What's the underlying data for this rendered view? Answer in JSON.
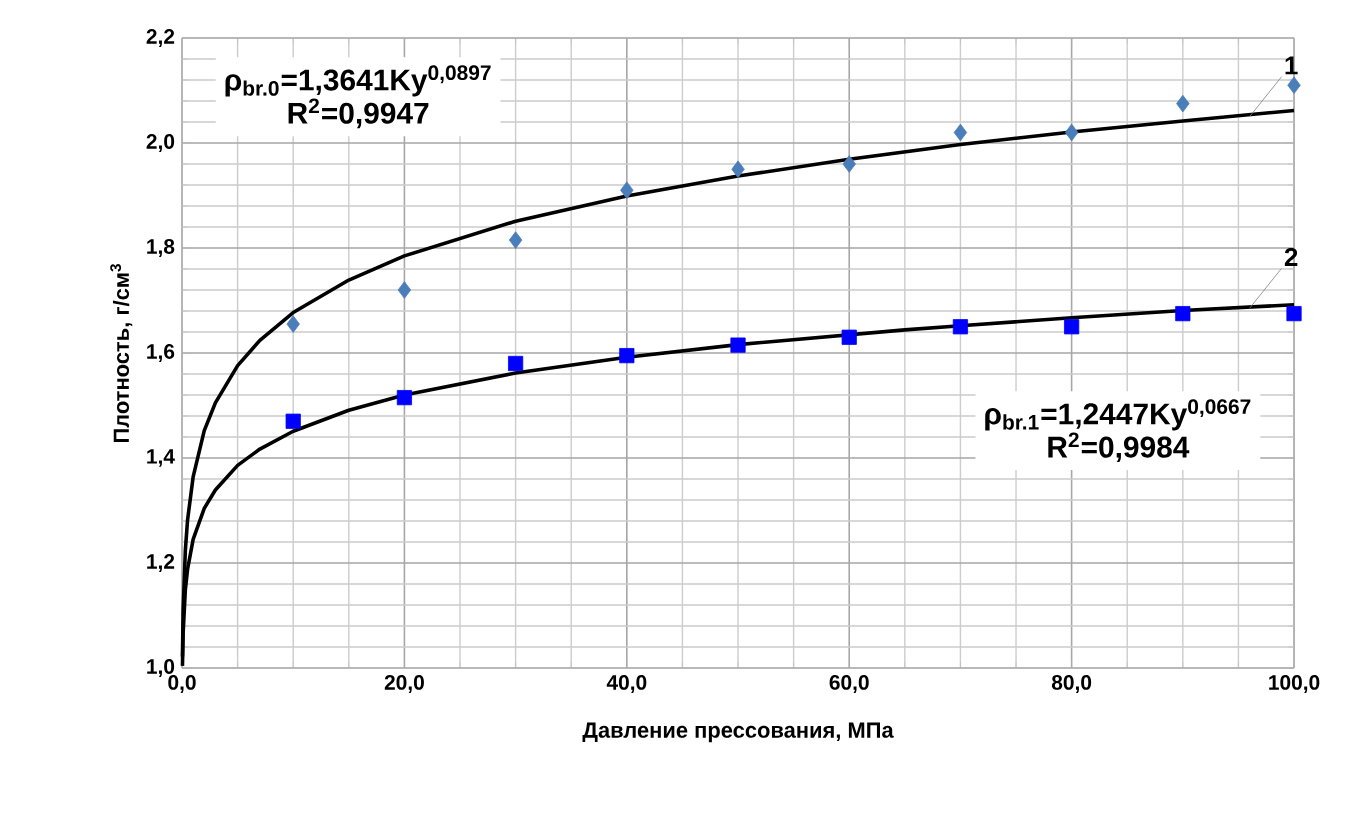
{
  "chart_data": {
    "type": "scatter",
    "xlabel": "Давление прессования, МПа",
    "ylabel": "Плотность, г/см$^{3}$",
    "x": [
      10,
      20,
      30,
      40,
      50,
      60,
      70,
      80,
      90,
      100
    ],
    "series": [
      {
        "marker": "diamond",
        "color": "#4a7ebb",
        "values": [
          1.655,
          1.72,
          1.815,
          1.91,
          1.95,
          1.96,
          2.02,
          2.02,
          2.075,
          2.11
        ]
      },
      {
        "marker": "square",
        "color": "#0000ff",
        "values": [
          1.47,
          1.515,
          1.58,
          1.595,
          1.615,
          1.63,
          1.65,
          1.65,
          1.675,
          1.675
        ]
      },
      {
        "type": "line",
        "marker": "none",
        "color": "#000000",
        "x": [
          0.04,
          0.1,
          0.3,
          0.5,
          1,
          2,
          3,
          5,
          7,
          10,
          15,
          20,
          30,
          40,
          50,
          60,
          70,
          80,
          90,
          100
        ],
        "values": [
          1.022,
          1.11,
          1.224,
          1.282,
          1.364,
          1.452,
          1.505,
          1.576,
          1.624,
          1.677,
          1.739,
          1.785,
          1.851,
          1.899,
          1.937,
          1.969,
          1.997,
          2.021,
          2.042,
          2.062
        ]
      },
      {
        "type": "line",
        "marker": "none",
        "color": "#000000",
        "x": [
          0.04,
          0.1,
          0.3,
          0.5,
          1,
          2,
          3,
          5,
          7,
          10,
          15,
          20,
          30,
          40,
          50,
          65,
          70,
          80,
          90,
          100
        ],
        "values": [
          1.004,
          1.067,
          1.149,
          1.188,
          1.245,
          1.304,
          1.339,
          1.386,
          1.417,
          1.451,
          1.491,
          1.52,
          1.562,
          1.592,
          1.616,
          1.644,
          1.652,
          1.667,
          1.681,
          1.692
        ]
      }
    ],
    "annotations": [
      "ρ$_{br.0}$=1,3641Ky$^{0,0897}$",
      "R$^{2}$=0,9947",
      "ρ$_{br.1}$=1,2447Ky$^{0,0667}$",
      "R$^{2}$=0,9984",
      {
        "text": "1",
        "x": 96,
        "y": 2.05
      },
      {
        "text": "2",
        "x": 96,
        "y": 1.685
      }
    ],
    "xlim": [
      0,
      100
    ],
    "ylim": [
      1.0,
      2.2
    ],
    "xticks": [
      {
        "value": 0,
        "label": "0,0"
      },
      {
        "value": 20,
        "label": "20,0"
      },
      {
        "value": 40,
        "label": "40,0"
      },
      {
        "value": 60,
        "label": "60,0"
      },
      {
        "value": 80,
        "label": "80,0"
      },
      {
        "value": 100,
        "label": "100,0"
      }
    ],
    "yticks": [
      {
        "value": 1.0,
        "label": "1,0"
      },
      {
        "value": 1.2,
        "label": "1,2"
      },
      {
        "value": 1.4,
        "label": "1,4"
      },
      {
        "value": 1.6,
        "label": "1,6"
      },
      {
        "value": 1.8,
        "label": "1,8"
      },
      {
        "value": 2.0,
        "label": "2,0"
      },
      {
        "value": 2.2,
        "label": "2,2"
      }
    ],
    "grid": true
  }
}
